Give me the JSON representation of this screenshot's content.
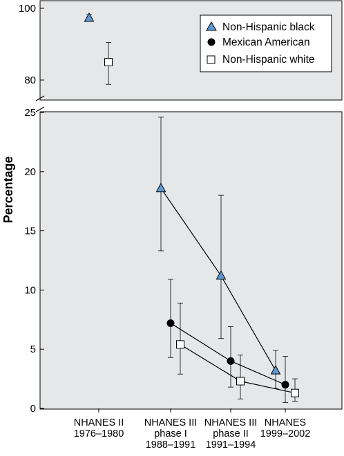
{
  "chart_data": {
    "type": "scatter",
    "title": "",
    "xlabel": "",
    "ylabel": "Percentage",
    "categories": [
      [
        "NHANES II",
        "1976–1980"
      ],
      [
        "NHANES III",
        "phase I",
        "1988–1991"
      ],
      [
        "NHANES III",
        "phase II",
        "1991–1994"
      ],
      [
        "NHANES",
        "1999–2002"
      ]
    ],
    "axis_break": {
      "lower_max": 25,
      "upper_min": 78,
      "upper_max": 100
    },
    "y_ticks_lower": [
      0,
      5,
      10,
      15,
      20,
      25
    ],
    "y_ticks_upper": [
      80,
      100
    ],
    "grid": false,
    "legend_position": "top-right",
    "series": [
      {
        "name": "Non-Hispanic black",
        "marker": "triangle",
        "color": "#5b9bd5",
        "connected_from_index": 1,
        "points": [
          {
            "y": 97.3,
            "lo": 96.5,
            "hi": 98.2
          },
          {
            "y": 18.6,
            "lo": 13.3,
            "hi": 24.6
          },
          {
            "y": 11.2,
            "lo": 5.9,
            "hi": 18.0
          },
          {
            "y": 3.2,
            "lo": 1.7,
            "hi": 4.9
          }
        ]
      },
      {
        "name": "Mexican American",
        "marker": "circle",
        "color": "#000000",
        "connected_from_index": 1,
        "points": [
          null,
          {
            "y": 7.2,
            "lo": 4.3,
            "hi": 10.9
          },
          {
            "y": 4.0,
            "lo": 1.8,
            "hi": 6.9
          },
          {
            "y": 2.0,
            "lo": 0.5,
            "hi": 4.4
          }
        ]
      },
      {
        "name": "Non-Hispanic white",
        "marker": "square",
        "color": "#ffffff",
        "connected_from_index": 1,
        "points": [
          {
            "y": 85.0,
            "lo": 78.8,
            "hi": 90.5
          },
          {
            "y": 5.4,
            "lo": 2.9,
            "hi": 8.9
          },
          {
            "y": 2.3,
            "lo": 0.8,
            "hi": 4.5
          },
          {
            "y": 1.3,
            "lo": 0.6,
            "hi": 2.5
          }
        ]
      }
    ]
  },
  "colors": {
    "plot_background": "#e6e7e8",
    "marker_blue": "#5b9bd5"
  }
}
